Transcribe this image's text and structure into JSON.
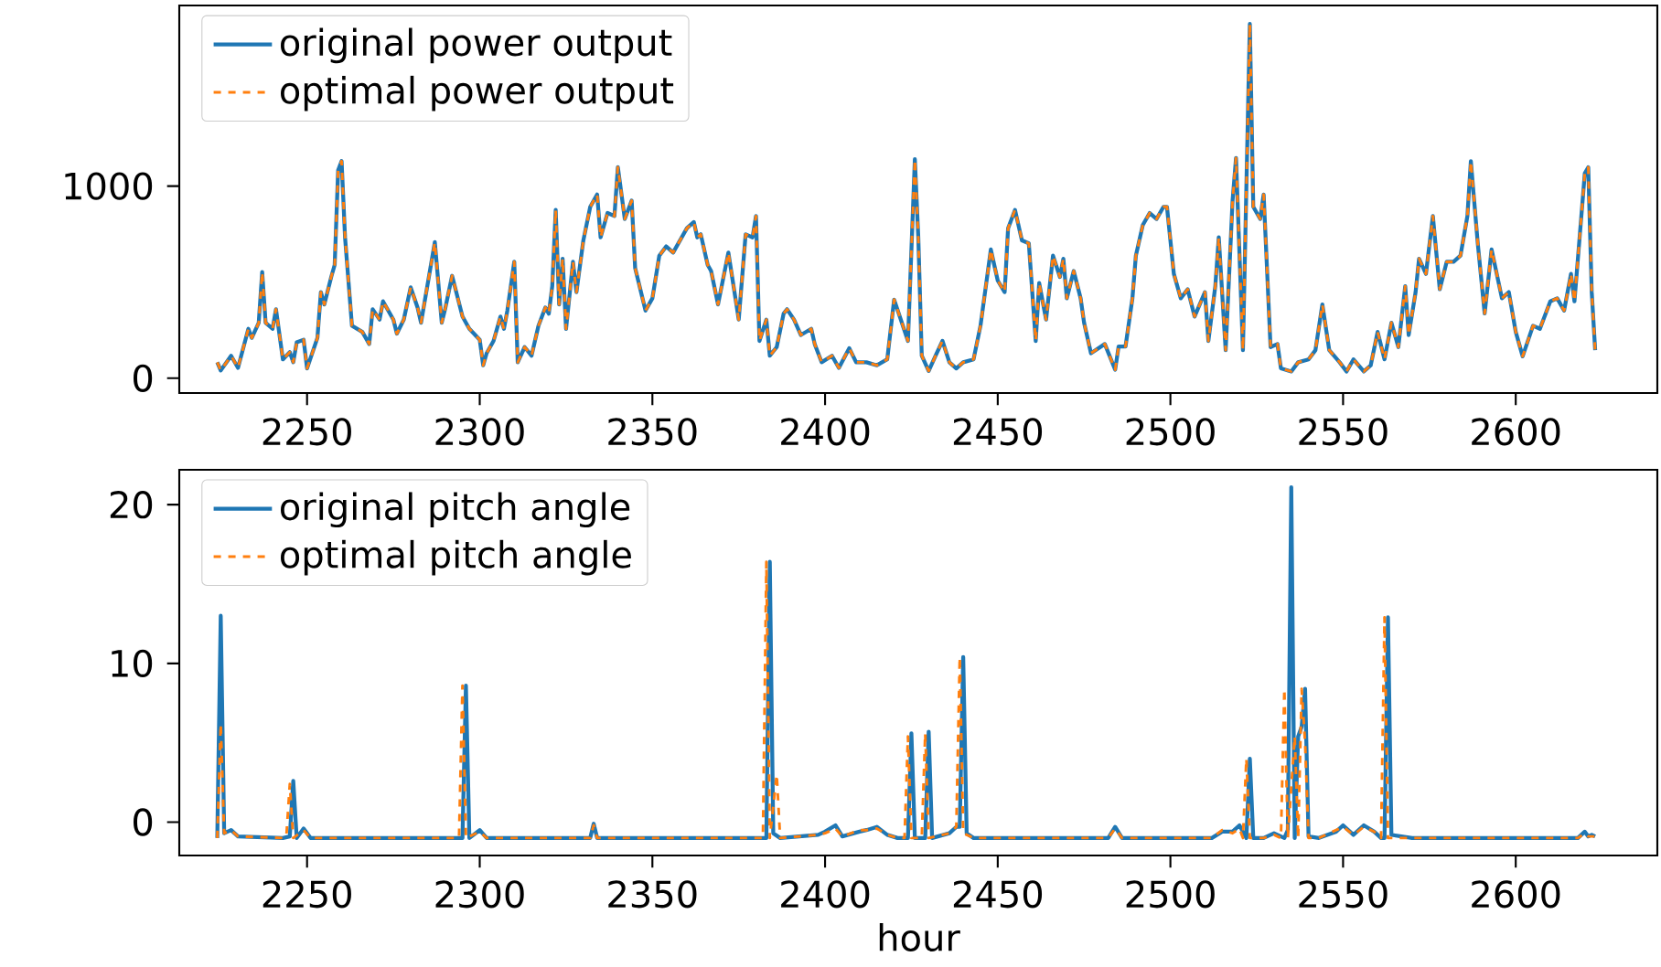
{
  "chart_data": [
    {
      "type": "line",
      "legend": "top left",
      "x": [
        2224,
        2225,
        2228,
        2230,
        2233,
        2234,
        2236,
        2237,
        2238,
        2240,
        2241,
        2243,
        2245,
        2246,
        2247,
        2249,
        2250,
        2253,
        2254,
        2255,
        2257,
        2258,
        2259,
        2260,
        2261,
        2263,
        2266,
        2268,
        2269,
        2271,
        2272,
        2275,
        2276,
        2278,
        2280,
        2282,
        2283,
        2287,
        2289,
        2290,
        2292,
        2295,
        2297,
        2300,
        2301,
        2302,
        2304,
        2306,
        2307,
        2308,
        2310,
        2311,
        2313,
        2315,
        2317,
        2319,
        2320,
        2321,
        2322,
        2323,
        2324,
        2325,
        2327,
        2328,
        2330,
        2332,
        2334,
        2335,
        2337,
        2339,
        2340,
        2342,
        2344,
        2345,
        2348,
        2350,
        2352,
        2354,
        2356,
        2360,
        2362,
        2363,
        2364,
        2366,
        2367,
        2369,
        2372,
        2375,
        2377,
        2379,
        2380,
        2381,
        2383,
        2384,
        2386,
        2388,
        2389,
        2391,
        2393,
        2396,
        2397,
        2399,
        2402,
        2404,
        2407,
        2409,
        2412,
        2415,
        2418,
        2420,
        2424,
        2426,
        2427,
        2428,
        2430,
        2432,
        2434,
        2436,
        2438,
        2440,
        2443,
        2445,
        2448,
        2450,
        2452,
        2453,
        2455,
        2457,
        2459,
        2461,
        2462,
        2464,
        2466,
        2468,
        2469,
        2470,
        2472,
        2474,
        2475,
        2477,
        2481,
        2484,
        2485,
        2487,
        2489,
        2490,
        2492,
        2494,
        2496,
        2498,
        2499,
        2501,
        2503,
        2505,
        2507,
        2510,
        2511,
        2513,
        2514,
        2516,
        2518,
        2519,
        2521,
        2523,
        2524,
        2526,
        2527,
        2529,
        2531,
        2532,
        2535,
        2537,
        2540,
        2542,
        2544,
        2546,
        2549,
        2551,
        2553,
        2556,
        2558,
        2560,
        2562,
        2564,
        2566,
        2568,
        2569,
        2571,
        2572,
        2574,
        2576,
        2578,
        2580,
        2582,
        2584,
        2586,
        2587,
        2589,
        2591,
        2593,
        2596,
        2598,
        2600,
        2602,
        2605,
        2607,
        2610,
        2612,
        2614,
        2616,
        2617,
        2620,
        2621,
        2622,
        2623
      ],
      "xlim": [
        2213,
        2641
      ],
      "ylim": [
        -77,
        1940
      ],
      "xticks": [
        2250,
        2300,
        2350,
        2400,
        2450,
        2500,
        2550,
        2600
      ],
      "yticks": [
        0,
        1000
      ],
      "series": [
        {
          "name": "original power output",
          "color": "#1f77b4",
          "line_style": "solid",
          "values": [
            83,
            40,
            117,
            54,
            257,
            210,
            289,
            553,
            289,
            257,
            359,
            98,
            136,
            83,
            187,
            200,
            51,
            210,
            448,
            384,
            527,
            590,
            1083,
            1130,
            733,
            273,
            241,
            178,
            359,
            305,
            400,
            305,
            232,
            305,
            473,
            368,
            289,
            708,
            289,
            362,
            533,
            321,
            257,
            200,
            67,
            130,
            194,
            321,
            257,
            352,
            606,
            83,
            162,
            117,
            273,
            368,
            336,
            479,
            876,
            384,
            622,
            257,
            606,
            448,
            717,
            892,
            956,
            733,
            860,
            844,
            1098,
            829,
            924,
            574,
            352,
            416,
            638,
            686,
            654,
            781,
            813,
            733,
            749,
            590,
            558,
            384,
            654,
            305,
            749,
            733,
            844,
            194,
            305,
            117,
            162,
            336,
            359,
            305,
            225,
            257,
            178,
            83,
            117,
            54,
            156,
            83,
            83,
            67,
            98,
            409,
            194,
            1140,
            733,
            117,
            38,
            117,
            194,
            83,
            51,
            83,
            98,
            273,
            670,
            508,
            448,
            781,
            876,
            717,
            702,
            194,
            495,
            305,
            638,
            527,
            622,
            416,
            558,
            416,
            289,
            130,
            178,
            44,
            165,
            165,
            416,
            638,
            797,
            860,
            829,
            892,
            892,
            543,
            416,
            463,
            321,
            448,
            194,
            479,
            733,
            146,
            924,
            1146,
            146,
            1844,
            892,
            829,
            956,
            162,
            178,
            51,
            35,
            83,
            98,
            146,
            384,
            146,
            83,
            35,
            98,
            35,
            67,
            241,
            98,
            289,
            162,
            479,
            225,
            448,
            622,
            543,
            844,
            463,
            606,
            606,
            638,
            844,
            1130,
            702,
            337,
            670,
            416,
            448,
            241,
            114,
            273,
            257,
            400,
            416,
            352,
            543,
            400,
            1067,
            1098,
            448,
            146
          ]
        },
        {
          "name": "optimal power output",
          "color": "#ff7f0e",
          "line_style": "dashed",
          "values": [
            83,
            40,
            117,
            54,
            257,
            210,
            289,
            553,
            289,
            257,
            359,
            98,
            136,
            83,
            187,
            200,
            51,
            210,
            448,
            384,
            527,
            590,
            1083,
            1130,
            733,
            273,
            241,
            178,
            359,
            305,
            400,
            305,
            232,
            305,
            473,
            368,
            289,
            708,
            289,
            362,
            533,
            321,
            257,
            200,
            67,
            130,
            194,
            321,
            257,
            352,
            606,
            83,
            162,
            117,
            273,
            368,
            336,
            479,
            876,
            384,
            622,
            257,
            606,
            448,
            717,
            892,
            956,
            733,
            860,
            844,
            1098,
            829,
            924,
            574,
            352,
            416,
            638,
            686,
            654,
            781,
            813,
            733,
            749,
            590,
            558,
            384,
            654,
            305,
            749,
            733,
            844,
            194,
            305,
            117,
            162,
            336,
            359,
            305,
            225,
            257,
            178,
            83,
            117,
            54,
            156,
            83,
            83,
            67,
            98,
            409,
            194,
            1140,
            733,
            117,
            38,
            117,
            194,
            83,
            51,
            83,
            98,
            273,
            670,
            508,
            448,
            781,
            876,
            717,
            702,
            194,
            495,
            305,
            638,
            527,
            622,
            416,
            558,
            416,
            289,
            130,
            178,
            44,
            165,
            165,
            416,
            638,
            797,
            860,
            829,
            892,
            892,
            543,
            416,
            463,
            321,
            448,
            194,
            479,
            733,
            146,
            924,
            1146,
            146,
            1844,
            892,
            829,
            956,
            162,
            178,
            51,
            35,
            83,
            98,
            146,
            384,
            146,
            83,
            35,
            98,
            35,
            67,
            241,
            98,
            289,
            162,
            479,
            225,
            448,
            622,
            543,
            844,
            463,
            606,
            606,
            638,
            844,
            1130,
            702,
            337,
            670,
            416,
            448,
            241,
            114,
            273,
            257,
            400,
            416,
            352,
            543,
            400,
            1067,
            1098,
            448,
            146
          ]
        }
      ]
    },
    {
      "type": "line",
      "legend": "top left",
      "xlabel": "hour",
      "xlim": [
        2213,
        2641
      ],
      "ylim": [
        -2.1,
        22.2
      ],
      "xticks": [
        2250,
        2300,
        2350,
        2400,
        2450,
        2500,
        2550,
        2600
      ],
      "yticks": [
        0,
        10,
        20
      ],
      "series": [
        {
          "name": "original pitch angle",
          "color": "#1f77b4",
          "line_style": "solid",
          "x": [
            2224,
            2225,
            2226,
            2228,
            2230,
            2243,
            2245,
            2246,
            2247,
            2249,
            2251,
            2295,
            2296,
            2297,
            2300,
            2302,
            2332,
            2333,
            2334,
            2383,
            2384,
            2385,
            2387,
            2398,
            2400,
            2403,
            2405,
            2410,
            2412,
            2415,
            2418,
            2421,
            2424,
            2425,
            2426,
            2429,
            2430,
            2431,
            2436,
            2438,
            2439,
            2440,
            2441,
            2443,
            2482,
            2484,
            2486,
            2512,
            2515,
            2518,
            2520,
            2522,
            2523,
            2524,
            2527,
            2530,
            2533,
            2534,
            2535,
            2536,
            2537,
            2538,
            2539,
            2540,
            2543,
            2548,
            2550,
            2553,
            2556,
            2559,
            2561,
            2562,
            2563,
            2564,
            2570,
            2618,
            2620,
            2621,
            2622,
            2623
          ],
          "values": [
            -1,
            13,
            -0.7,
            -0.5,
            -0.9,
            -1,
            -0.9,
            2.6,
            -1,
            -0.4,
            -1,
            -1,
            8.6,
            -1,
            -0.5,
            -1,
            -1,
            -0.1,
            -1,
            -1,
            16.4,
            -0.7,
            -1,
            -0.8,
            -0.6,
            -0.2,
            -0.9,
            -0.6,
            -0.5,
            -0.3,
            -0.8,
            -1,
            -1,
            5.6,
            -1,
            -1,
            5.7,
            -1,
            -0.7,
            -0.3,
            -0.3,
            10.4,
            -0.7,
            -1,
            -1,
            -0.3,
            -1,
            -1,
            -0.6,
            -0.6,
            -0.2,
            -1,
            4.0,
            -1,
            -1,
            -0.7,
            -1,
            -0.5,
            21.1,
            -1,
            5.4,
            6.0,
            8.4,
            -0.9,
            -1,
            -0.6,
            -0.2,
            -0.8,
            -0.2,
            -0.6,
            -1,
            -1,
            12.9,
            -0.8,
            -1,
            -1,
            -0.6,
            -0.9,
            -0.8,
            -0.9
          ]
        },
        {
          "name": "optimal pitch angle",
          "color": "#ff7f0e",
          "line_style": "dashed",
          "x": [
            2224,
            2225,
            2226,
            2228,
            2230,
            2243,
            2244,
            2245,
            2246,
            2249,
            2251,
            2294,
            2295,
            2296,
            2300,
            2302,
            2332,
            2333,
            2334,
            2382,
            2383,
            2384,
            2386,
            2387,
            2398,
            2400,
            2403,
            2405,
            2410,
            2412,
            2415,
            2418,
            2421,
            2423,
            2424,
            2425,
            2428,
            2429,
            2430,
            2436,
            2438,
            2439,
            2440,
            2443,
            2482,
            2484,
            2486,
            2512,
            2515,
            2518,
            2520,
            2521,
            2522,
            2523,
            2527,
            2530,
            2532,
            2533,
            2534,
            2536,
            2537,
            2538,
            2539,
            2540,
            2543,
            2548,
            2550,
            2553,
            2556,
            2559,
            2561,
            2562,
            2563,
            2570,
            2618,
            2620,
            2621,
            2622,
            2623
          ],
          "values": [
            -1,
            6.2,
            -0.7,
            -0.5,
            -0.9,
            -1,
            -0.9,
            2.4,
            -1,
            -0.5,
            -1,
            -1,
            8.6,
            -1,
            -0.6,
            -1,
            -1,
            -0.2,
            -1,
            -1,
            16.4,
            -1,
            3.0,
            -1,
            -0.8,
            -0.7,
            -0.4,
            -0.9,
            -0.5,
            -0.5,
            -0.4,
            -0.8,
            -1,
            -1,
            5.4,
            -1,
            -1,
            5.6,
            -1,
            -0.7,
            -0.3,
            10.4,
            -0.7,
            -1,
            -1,
            -0.4,
            -1,
            -1,
            -0.5,
            -0.7,
            -0.4,
            -1,
            4.0,
            -1,
            -1,
            -0.8,
            -1,
            8.4,
            -1,
            5.4,
            -1,
            8.4,
            5.0,
            -1,
            -1,
            -0.5,
            -0.3,
            -0.8,
            -0.3,
            -0.6,
            -1,
            12.9,
            -1,
            -1,
            -1,
            -0.7,
            -0.9,
            -0.9,
            -0.9
          ]
        }
      ]
    }
  ]
}
